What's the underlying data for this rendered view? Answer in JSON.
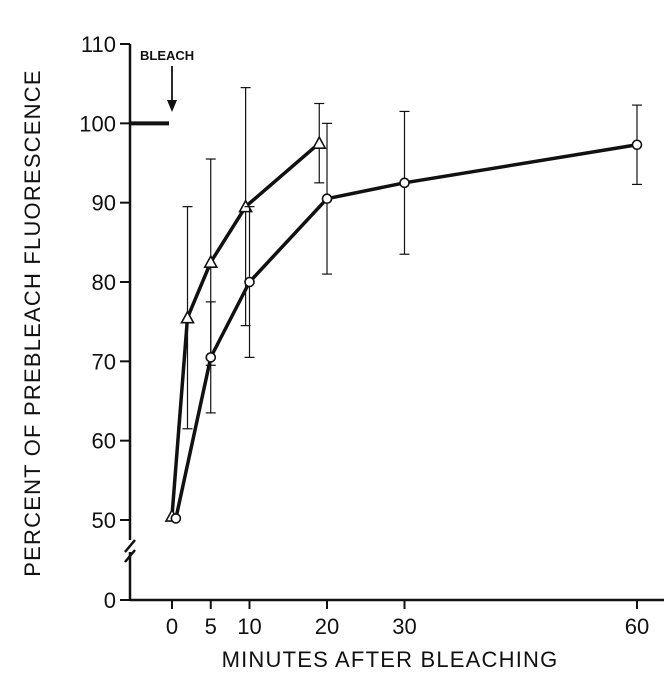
{
  "chart_data": {
    "type": "line",
    "xlabel": "MINUTES AFTER BLEACHING",
    "ylabel": "PERCENT OF PREBLEACH FLUORESCENCE",
    "x_ticks": [
      0,
      5,
      10,
      20,
      30,
      60
    ],
    "y_ticks": [
      50,
      60,
      70,
      80,
      90,
      100,
      110
    ],
    "y_break_tick": 0,
    "ylim": [
      50,
      110
    ],
    "grid": false,
    "legend": "none",
    "annotation": {
      "text": "BLEACH",
      "x": 0,
      "y": 100,
      "prebleach_level": 100
    },
    "series": [
      {
        "marker": "triangle",
        "x": [
          0,
          2,
          5,
          9.5,
          19
        ],
        "y": [
          50.5,
          75.5,
          82.5,
          89.5,
          97.5
        ],
        "error": [
          0,
          14,
          13,
          15,
          5
        ]
      },
      {
        "marker": "circle",
        "x": [
          0.5,
          5,
          10,
          20,
          30,
          60
        ],
        "y": [
          50.2,
          70.5,
          80,
          90.5,
          92.5,
          97.3
        ],
        "error": [
          0,
          7,
          9.5,
          9.5,
          9,
          5
        ]
      }
    ]
  }
}
